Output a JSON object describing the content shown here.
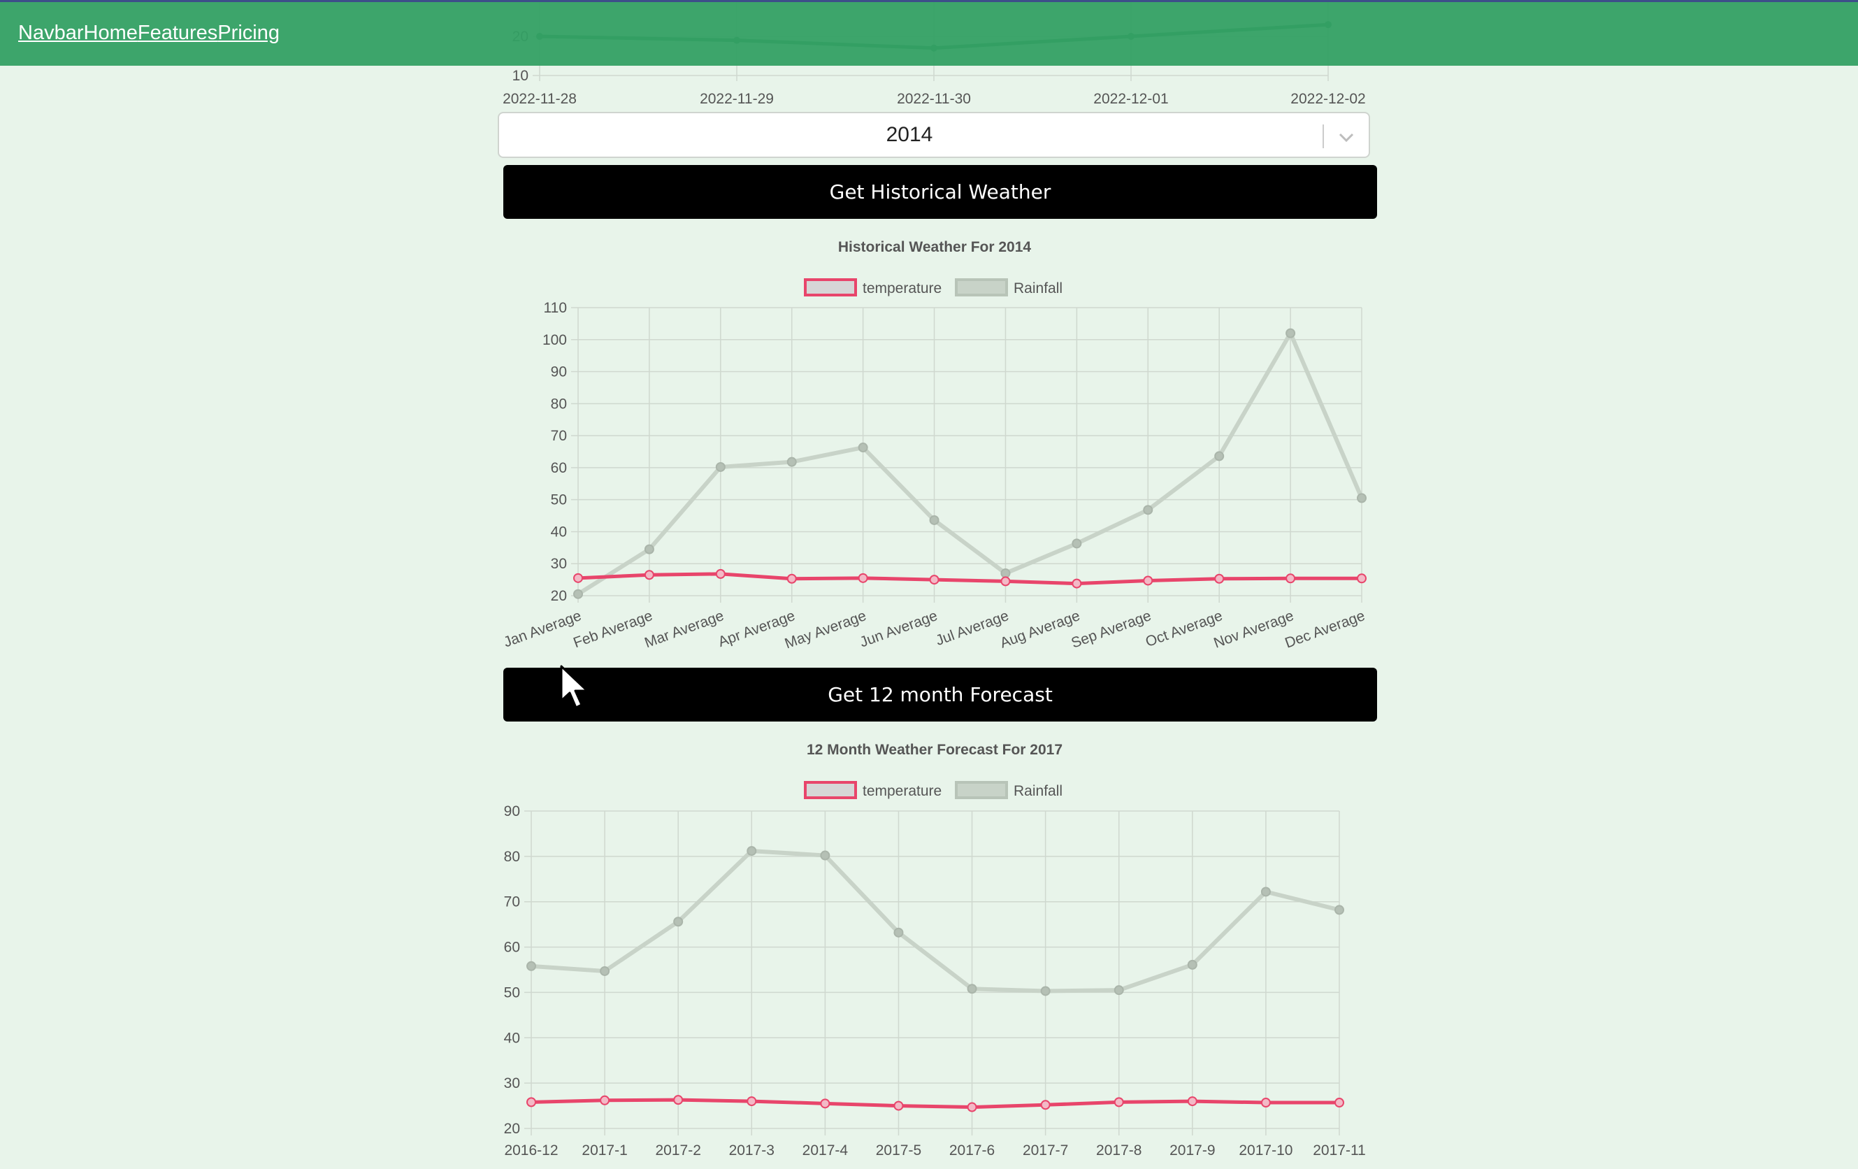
{
  "navbar": {
    "links": [
      "Navbar",
      "Home",
      "Features",
      "Pricing"
    ]
  },
  "year_select": {
    "value": "2014"
  },
  "buttons": {
    "historical": "Get Historical Weather",
    "forecast": "Get 12 month Forecast"
  },
  "chart_data": [
    {
      "type": "line",
      "title": "",
      "x": [
        "2022-11-28",
        "2022-11-29",
        "2022-11-30",
        "2022-12-01",
        "2022-12-02"
      ],
      "y_ticks_visible": [
        10,
        20
      ],
      "series": [
        {
          "name": "",
          "color": "#2e8b57",
          "values": [
            20,
            19,
            17,
            20,
            23
          ]
        }
      ],
      "note_visible_portion": "partially hidden behind navbar"
    },
    {
      "type": "line",
      "title": "Historical Weather For 2014",
      "legend_position": "top",
      "categories": [
        "Jan Average",
        "Feb Average",
        "Mar Average",
        "Apr Average",
        "May Average",
        "Jun Average",
        "Jul Average",
        "Aug Average",
        "Sep Average",
        "Oct Average",
        "Nov Average",
        "Dec Average"
      ],
      "ylim": [
        20,
        110
      ],
      "yticks": [
        20,
        30,
        40,
        50,
        60,
        70,
        80,
        90,
        100,
        110
      ],
      "grid": true,
      "series": [
        {
          "name": "temperature",
          "color": "#e8456b",
          "values": [
            25.5,
            26.5,
            26.8,
            25.3,
            25.5,
            25,
            24.5,
            23.8,
            24.7,
            25.3,
            25.4,
            25.4
          ]
        },
        {
          "name": "Rainfall",
          "color": "#c8d3c8",
          "values": [
            20.5,
            34.5,
            60.2,
            61.8,
            66.3,
            43.6,
            27,
            36.3,
            46.8,
            63.6,
            102,
            50.5
          ]
        }
      ]
    },
    {
      "type": "line",
      "title": "12 Month Weather Forecast For 2017",
      "legend_position": "top",
      "categories": [
        "2016-12",
        "2017-1",
        "2017-2",
        "2017-3",
        "2017-4",
        "2017-5",
        "2017-6",
        "2017-7",
        "2017-8",
        "2017-9",
        "2017-10",
        "2017-11"
      ],
      "ylim": [
        20,
        90
      ],
      "yticks": [
        20,
        30,
        40,
        50,
        60,
        70,
        80,
        90
      ],
      "grid": true,
      "series": [
        {
          "name": "temperature",
          "color": "#e8456b",
          "values": [
            25.8,
            26.2,
            26.3,
            26,
            25.5,
            25,
            24.7,
            25.2,
            25.8,
            26,
            25.7,
            25.7
          ]
        },
        {
          "name": "Rainfall",
          "color": "#c8d3c8",
          "values": [
            55.8,
            54.7,
            65.6,
            81.2,
            80.2,
            63.2,
            50.8,
            50.3,
            50.5,
            56.1,
            72.2,
            68.2
          ]
        }
      ]
    }
  ]
}
